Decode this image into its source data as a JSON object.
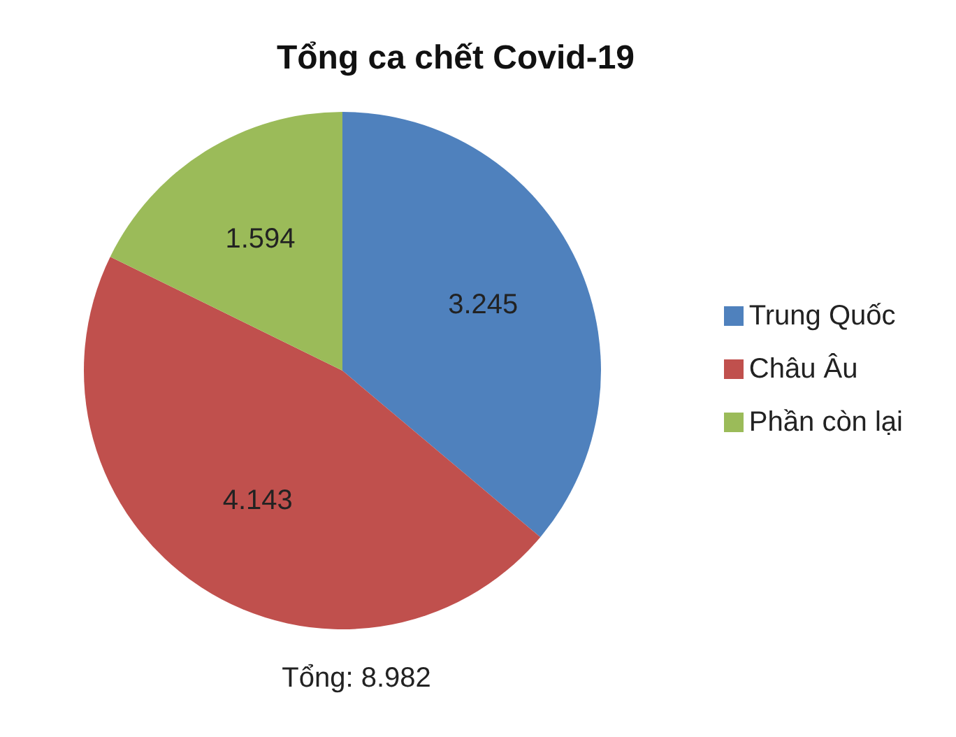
{
  "chart_data": {
    "type": "pie",
    "title": "Tổng ca chết Covid-19",
    "categories": [
      "Trung Quốc",
      "Châu Âu",
      "Phần còn lại"
    ],
    "values": [
      3245,
      4143,
      1594
    ],
    "colors": [
      "#4f81bd",
      "#c0504d",
      "#9bbb59"
    ],
    "value_labels": [
      "3.245",
      "4.143",
      "1.594"
    ],
    "legend": "right",
    "annotations": [
      "Tổng: 8.982"
    ]
  }
}
